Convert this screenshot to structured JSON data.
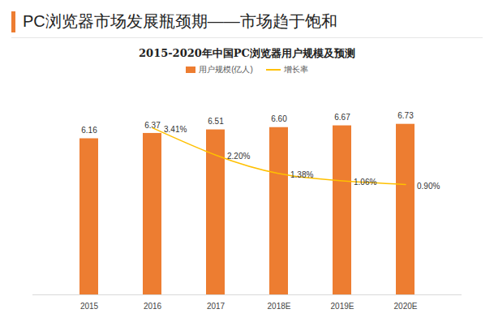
{
  "header": "PC浏览器市场发展瓶颈期——市场趋于饱和",
  "chart_data": {
    "type": "bar",
    "title": "2015-2020年中国PC浏览器用户规模及预测",
    "categories": [
      "2015",
      "2016",
      "2017",
      "2018E",
      "2019E",
      "2020E"
    ],
    "series": [
      {
        "name": "用户规模(亿人)",
        "type": "bar",
        "color": "#ED7D31",
        "values": [
          6.16,
          6.37,
          6.51,
          6.6,
          6.67,
          6.73
        ],
        "value_labels": [
          "6.16",
          "6.37",
          "6.51",
          "6.60",
          "6.67",
          "6.73"
        ]
      },
      {
        "name": "增长率",
        "type": "line",
        "axis": "y2",
        "color": "#FFC000",
        "values": [
          null,
          3.41,
          2.2,
          1.38,
          1.06,
          0.9
        ],
        "value_labels": [
          null,
          "3.41%",
          "2.20%",
          "1.38%",
          "1.06%",
          "0.90%"
        ]
      }
    ],
    "ylim": [
      0,
      8
    ],
    "y2lim": [
      -4,
      5
    ],
    "tick_labels": "x",
    "data_labels": true,
    "legend": "top"
  }
}
